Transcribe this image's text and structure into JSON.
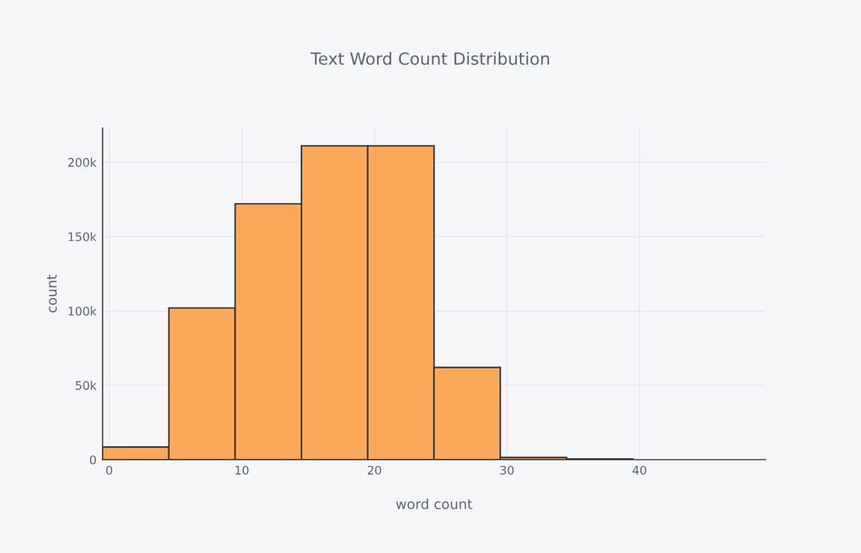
{
  "chart_data": {
    "type": "histogram",
    "title": "Text Word Count Distribution",
    "xlabel": "word count",
    "ylabel": "count",
    "bins": [
      -0.5,
      4.5,
      9.5,
      14.5,
      19.5,
      24.5,
      29.5,
      34.5,
      39.5
    ],
    "values": [
      8500,
      102000,
      172000,
      211000,
      211000,
      62000,
      1500,
      500
    ],
    "color": "#fca95a",
    "xlim": [
      -0.5,
      49.5
    ],
    "xticks": [
      0,
      10,
      20,
      30,
      40
    ],
    "ylim": [
      0,
      223000
    ],
    "yticks": [
      0,
      {
        "value": 50000,
        "label": "50k"
      },
      {
        "value": 100000,
        "label": "100k"
      },
      {
        "value": 150000,
        "label": "150k"
      },
      {
        "value": 200000,
        "label": "200k"
      }
    ],
    "grid": true
  }
}
